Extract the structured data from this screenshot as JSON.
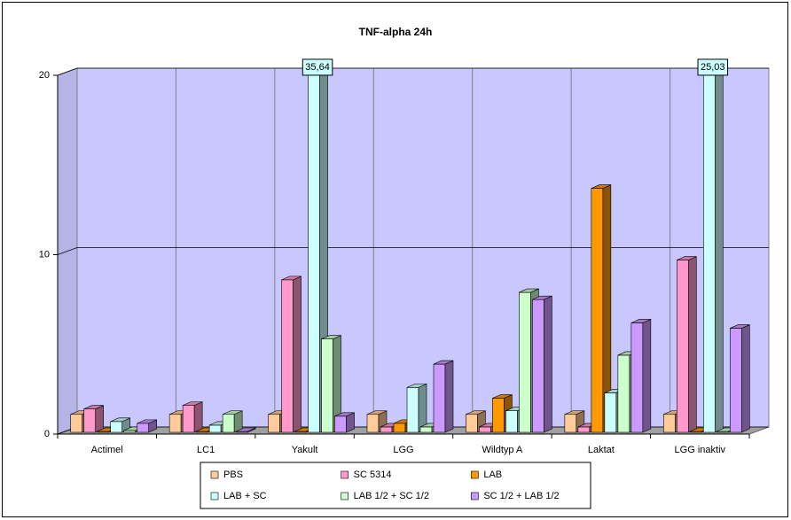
{
  "chart_data": {
    "type": "bar3d",
    "title": "TNF-alpha 24h",
    "categories": [
      "Actimel",
      "LC1",
      "Yakult",
      "LGG",
      "Wildtyp A",
      "Laktat",
      "LGG inaktiv"
    ],
    "series": [
      {
        "name": "PBS",
        "color": "#FFCC99",
        "values": [
          1.0,
          1.0,
          1.0,
          1.0,
          1.0,
          1.0,
          1.0
        ]
      },
      {
        "name": "SC 5314",
        "color": "#FF99CC",
        "values": [
          1.3,
          1.5,
          8.5,
          0.3,
          0.3,
          0.3,
          9.6
        ]
      },
      {
        "name": "LAB",
        "color": "#FF9900",
        "values": [
          0.05,
          0.05,
          0.05,
          0.5,
          1.9,
          13.6,
          0.05
        ]
      },
      {
        "name": "LAB + SC",
        "color": "#CCFFFF",
        "values": [
          0.6,
          0.4,
          35.64,
          2.5,
          1.2,
          2.2,
          25.03
        ],
        "value_labels": [
          null,
          null,
          "35,64",
          null,
          null,
          null,
          "25,03"
        ]
      },
      {
        "name": "LAB 1/2 + SC 1/2",
        "color": "#CCFFCC",
        "values": [
          0.1,
          1.0,
          5.2,
          0.3,
          7.8,
          4.3,
          0.05
        ]
      },
      {
        "name": "SC 1/2 + LAB 1/2",
        "color": "#CC99FF",
        "values": [
          0.5,
          0.05,
          0.9,
          3.8,
          7.4,
          6.1,
          5.8
        ]
      }
    ],
    "ylim": [
      0,
      20
    ],
    "yticks": [
      0,
      10,
      20
    ],
    "grid": true,
    "legend": "bottom"
  }
}
